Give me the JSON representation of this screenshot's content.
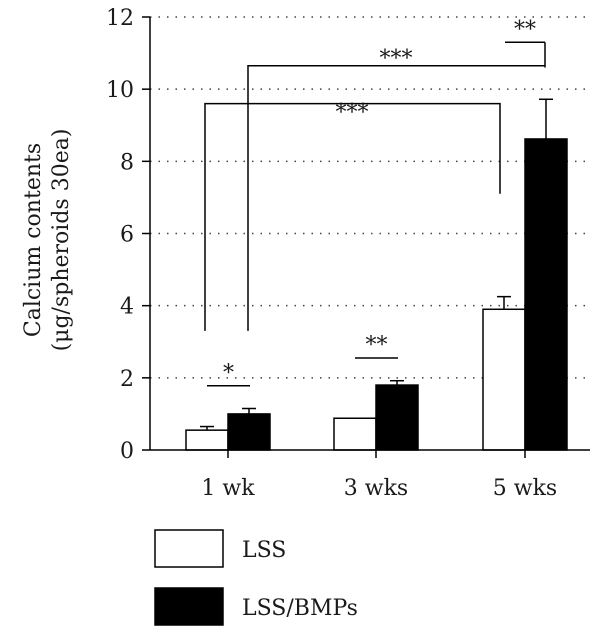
{
  "chart_data": {
    "type": "bar",
    "categories": [
      "1 wk",
      "3 wks",
      "5 wks"
    ],
    "series": [
      {
        "name": "LSS",
        "values": [
          0.55,
          0.88,
          3.9
        ],
        "errors": [
          0.1,
          0.0,
          0.35
        ],
        "fill": "#ffffff"
      },
      {
        "name": "LSS/BMPs",
        "values": [
          1.0,
          1.8,
          8.62
        ],
        "errors": [
          0.15,
          0.12,
          1.1
        ],
        "fill": "#000000"
      }
    ],
    "ylabel_line1": "Calcium contents",
    "ylabel_line2": "(μg/spheroids 30ea)",
    "ylim": [
      0,
      12
    ],
    "yticks": [
      0,
      2,
      4,
      6,
      8,
      10,
      12
    ],
    "grid": "horizontal dotted",
    "legend_position": "bottom-left",
    "significance": [
      {
        "label": "*",
        "between": [
          "1 wk LSS",
          "1 wk LSS/BMPs"
        ]
      },
      {
        "label": "**",
        "between": [
          "3 wks LSS",
          "3 wks LSS/BMPs"
        ]
      },
      {
        "label": "**",
        "between": [
          "5 wks LSS",
          "5 wks LSS/BMPs"
        ]
      },
      {
        "label": "***",
        "between": [
          "1 wk LSS",
          "5 wks LSS"
        ]
      },
      {
        "label": "***",
        "between": [
          "1 wk LSS/BMPs",
          "5 wks LSS/BMPs"
        ]
      }
    ]
  }
}
